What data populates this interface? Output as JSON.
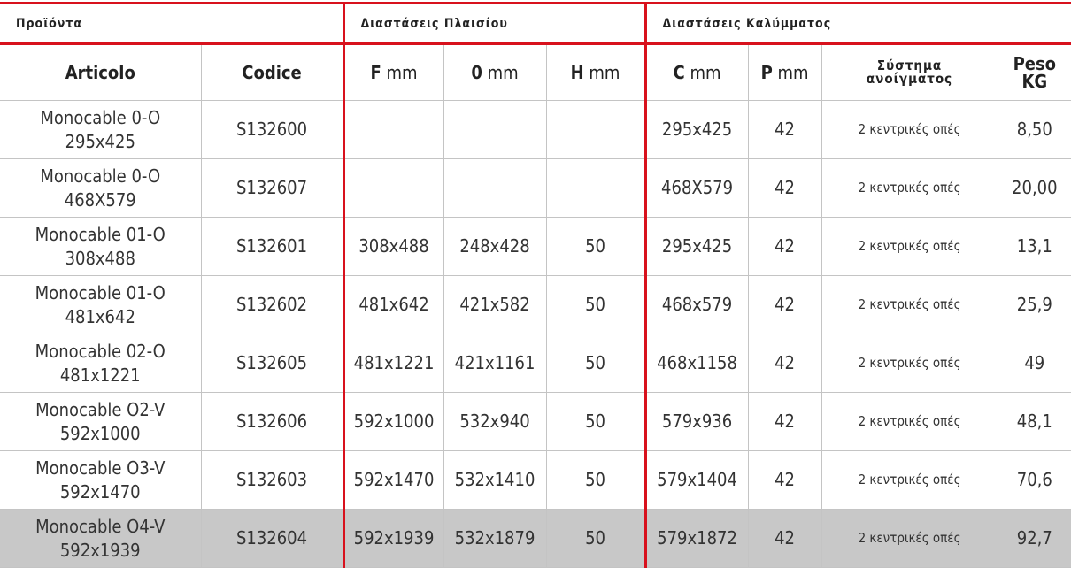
{
  "groups": {
    "products": "Προϊόντα",
    "frame": "Διαστάσεις Πλαισίου",
    "cover": "Διαστάσεις Καλύμματος"
  },
  "headers": {
    "articolo": "Articolo",
    "codice": "Codice",
    "f": "F",
    "o": "0",
    "h": "H",
    "c": "C",
    "p": "P",
    "unit": "mm",
    "system_1": "Σύστημα",
    "system_2": "ανοίγματος",
    "peso_1": "Peso",
    "peso_2": "KG"
  },
  "rows": [
    {
      "name_1": "Monocable 0-O",
      "name_2": "295x425",
      "code": "S132600",
      "f": "",
      "o": "",
      "h": "",
      "c": "295x425",
      "p": "42",
      "system": "2 κεντρικές οπές",
      "peso": "8,50"
    },
    {
      "name_1": "Monocable 0-O",
      "name_2": "468X579",
      "code": "S132607",
      "f": "",
      "o": "",
      "h": "",
      "c": "468X579",
      "p": "42",
      "system": "2 κεντρικές οπές",
      "peso": "20,00"
    },
    {
      "name_1": "Monocable 01-O",
      "name_2": "308x488",
      "code": "S132601",
      "f": "308x488",
      "o": "248x428",
      "h": "50",
      "c": "295x425",
      "p": "42",
      "system": "2 κεντρικές οπές",
      "peso": "13,1"
    },
    {
      "name_1": "Monocable 01-O",
      "name_2": "481x642",
      "code": "S132602",
      "f": "481x642",
      "o": "421x582",
      "h": "50",
      "c": "468x579",
      "p": "42",
      "system": "2 κεντρικές οπές",
      "peso": "25,9"
    },
    {
      "name_1": "Monocable 02-O",
      "name_2": "481x1221",
      "code": "S132605",
      "f": "481x1221",
      "o": "421x1161",
      "h": "50",
      "c": "468x1158",
      "p": "42",
      "system": "2 κεντρικές οπές",
      "peso": "49"
    },
    {
      "name_1": "Monocable O2-V",
      "name_2": "592x1000",
      "code": "S132606",
      "f": "592x1000",
      "o": "532x940",
      "h": "50",
      "c": "579x936",
      "p": "42",
      "system": "2 κεντρικές οπές",
      "peso": "48,1"
    },
    {
      "name_1": "Monocable O3-V",
      "name_2": "592x1470",
      "code": "S132603",
      "f": "592x1470",
      "o": "532x1410",
      "h": "50",
      "c": "579x1404",
      "p": "42",
      "system": "2 κεντρικές οπές",
      "peso": "70,6"
    },
    {
      "name_1": "Monocable O4-V",
      "name_2": "592x1939",
      "code": "S132604",
      "f": "592x1939",
      "o": "532x1879",
      "h": "50",
      "c": "579x1872",
      "p": "42",
      "system": "2 κεντρικές οπές",
      "peso": "92,7",
      "highlighted": true
    }
  ],
  "colors": {
    "accent": "#d8111d",
    "highlight_row": "#c8c8c8",
    "grid": "#c4c4c4"
  }
}
